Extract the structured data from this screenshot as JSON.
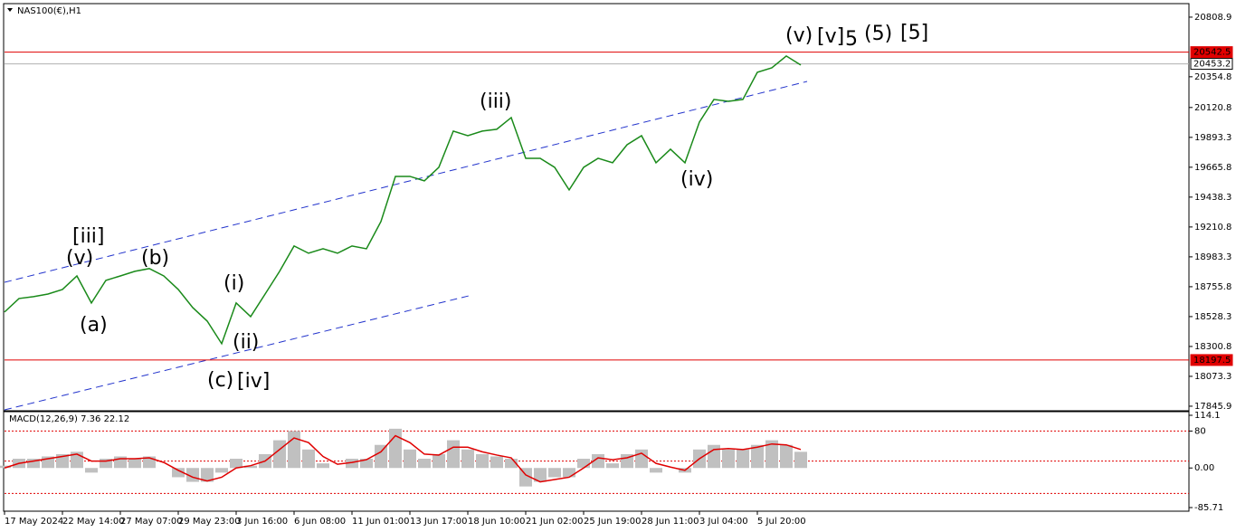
{
  "chart_data": [
    {
      "type": "line",
      "title": "NAS100(€),H1",
      "categories": [
        "17 May 2024",
        null,
        null,
        null,
        "22 May 14:00",
        null,
        null,
        null,
        "27 May 07:00",
        null,
        null,
        null,
        "29 May 23:00",
        null,
        null,
        null,
        "3 Jun 16:00",
        null,
        null,
        null,
        "6 Jun 08:00",
        null,
        null,
        null,
        "11 Jun 01:00",
        null,
        null,
        null,
        "13 Jun 17:00",
        null,
        null,
        null,
        "18 Jun 10:00",
        null,
        null,
        null,
        "21 Jun 02:00",
        null,
        null,
        null,
        "25 Jun 19:00",
        null,
        null,
        null,
        "28 Jun 11:00",
        null,
        null,
        null,
        "3 Jul 04:00",
        null,
        null,
        null,
        "5 Jul 20:00",
        null,
        null,
        null
      ],
      "series": [
        {
          "color": "#1a8a1a",
          "values": [
            18563,
            18666,
            18680,
            18700,
            18735,
            18838,
            18632,
            18804,
            18838,
            18873,
            18894,
            18838,
            18735,
            18597,
            18494,
            18322,
            18632,
            18528,
            18700,
            18873,
            19066,
            19011,
            19045,
            19011,
            19066,
            19045,
            19252,
            19596,
            19596,
            19562,
            19665,
            19941,
            19906,
            19941,
            19955,
            20044,
            19734,
            19734,
            19665,
            19493,
            19665,
            19734,
            19700,
            19837,
            19906,
            19700,
            19803,
            19700,
            20010,
            20182,
            20168,
            20182,
            20389,
            20423,
            20513,
            20444
          ]
        }
      ],
      "ylim": [
        17818,
        20905
      ],
      "yticks": [
        20808.9,
        20354.8,
        20120.8,
        19893.3,
        19665.8,
        19438.3,
        19210.8,
        18983.3,
        18755.8,
        18528.3,
        18300.8,
        18073.3,
        17845.9
      ],
      "levels": [
        {
          "value": 20542.5,
          "color": "#e00000"
        },
        {
          "value": 20453.2,
          "color": "#b0b0b0"
        },
        {
          "value": 18197.5,
          "color": "#e00000"
        }
      ],
      "annotations": [
        {
          "text": "(v)",
          "color": "#1a1aee"
        },
        {
          "text": "[v]",
          "color": "#228b22"
        },
        {
          "text": "5",
          "color": "#1a1aee"
        },
        {
          "text": "(5)",
          "color": "#e00000"
        },
        {
          "text": "[5]",
          "color": "#000000"
        },
        {
          "text": "(iii)",
          "color": "#1a1aee"
        },
        {
          "text": "(iv)",
          "color": "#1a1aee"
        },
        {
          "text": "[iii]",
          "color": "#228b22"
        },
        {
          "text": "(v)",
          "color": "#1a1aee"
        },
        {
          "text": "(b)",
          "color": "#1a1aee"
        },
        {
          "text": "(a)",
          "color": "#1a1aee"
        },
        {
          "text": "(i)",
          "color": "#1a1aee"
        },
        {
          "text": "(ii)",
          "color": "#1a1aee"
        },
        {
          "text": "(c)",
          "color": "#1a1aee"
        },
        {
          "text": "[iv]",
          "color": "#228b22"
        }
      ]
    },
    {
      "type": "bar",
      "title": "MACD(12,26,9) 7.36 22.12",
      "series": [
        {
          "color": "#c0c0c0",
          "values": [
            5,
            20,
            20,
            25,
            30,
            35,
            -10,
            20,
            25,
            20,
            25,
            0,
            -20,
            -30,
            -30,
            -10,
            20,
            5,
            30,
            60,
            80,
            40,
            10,
            0,
            20,
            20,
            50,
            85,
            40,
            20,
            30,
            60,
            40,
            30,
            25,
            20,
            -40,
            -30,
            -20,
            -20,
            20,
            30,
            10,
            30,
            40,
            -10,
            0,
            -10,
            40,
            50,
            40,
            40,
            50,
            60,
            50,
            35
          ]
        },
        {
          "color": "#e00000",
          "values": [
            0,
            10,
            15,
            20,
            25,
            30,
            15,
            15,
            20,
            20,
            22,
            12,
            -5,
            -20,
            -28,
            -20,
            0,
            5,
            15,
            40,
            65,
            55,
            25,
            8,
            12,
            18,
            35,
            70,
            55,
            30,
            28,
            45,
            45,
            35,
            28,
            22,
            -15,
            -30,
            -25,
            -20,
            0,
            22,
            18,
            22,
            32,
            10,
            2,
            -5,
            20,
            40,
            42,
            40,
            45,
            52,
            50,
            40
          ]
        }
      ],
      "ylim": [
        -85.71,
        114.1
      ],
      "yticks": [
        114.1,
        80,
        {
          "value": 0,
          "label": "0.00"
        },
        -85.71
      ],
      "levels": [
        80,
        15,
        -55
      ]
    }
  ]
}
